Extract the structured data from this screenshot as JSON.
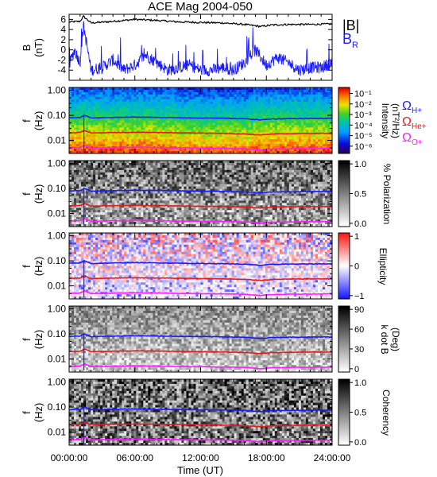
{
  "figure": {
    "title": "ACE Mag 2004-050",
    "xlabel": "Time (UT)",
    "xticks": [
      "00:00:00",
      "06:00:00",
      "12:00:00",
      "18:00:00",
      "24:00:00"
    ]
  },
  "colors": {
    "b_magnitude": "#000000",
    "b_r": "#1a1aff",
    "omega_h": "#1a1aff",
    "omega_he": "#e61a1a",
    "omega_o": "#ff1aff"
  },
  "chart_data": [
    {
      "type": "line",
      "panel": "magnetic-field",
      "ylabel": "B",
      "yunit": "(nT)",
      "ylim": [
        -6,
        7
      ],
      "yticks": [
        "6",
        "4",
        "2",
        "0",
        "-2",
        "-4"
      ],
      "xlim": [
        0,
        24
      ],
      "series": [
        {
          "name": "|B|",
          "x": [
            0,
            1,
            1.3,
            2,
            4,
            6,
            8,
            10,
            12,
            14,
            16,
            17.5,
            18.5,
            20,
            22,
            24
          ],
          "values": [
            5.5,
            5.6,
            6.6,
            5.3,
            5.6,
            6.0,
            5.8,
            5.5,
            5.4,
            5.3,
            5.0,
            4.6,
            4.9,
            5.0,
            5.0,
            5.1
          ]
        },
        {
          "name": "B",
          "subscript": "R",
          "x": [
            0,
            0.5,
            1,
            1.3,
            2,
            3,
            4,
            5,
            6,
            7,
            8,
            9,
            10,
            11,
            12,
            13,
            14,
            15,
            16,
            17,
            18,
            19,
            20,
            21,
            22,
            23,
            24
          ],
          "values": [
            -3.0,
            0.0,
            -2.5,
            5.0,
            -4.0,
            -3.5,
            -2.0,
            -4.0,
            -3.0,
            -1.0,
            -2.5,
            -4.0,
            -3.5,
            -3.0,
            -4.0,
            -4.0,
            -3.5,
            -4.0,
            -2.5,
            0.0,
            -3.0,
            -1.5,
            -2.5,
            -4.0,
            -3.5,
            -3.5,
            -2.5
          ]
        }
      ]
    },
    {
      "type": "heatmap",
      "panel": "intensity",
      "ylabel": "f",
      "yunit": "(Hz)",
      "ylim": [
        0.003,
        1.3
      ],
      "yticks": [
        "1.00",
        "0.10",
        "0.01"
      ],
      "colorbar_label": "Intensity",
      "colorbar_unit": "(nT²/Hz)",
      "colorbar_ticks": [
        "10⁻¹",
        "10⁻²",
        "10⁻³",
        "10⁻⁴",
        "10⁻⁵",
        "10⁻⁶"
      ],
      "colorbar_scale": "log",
      "legend": [
        "ΩH+",
        "ΩHe+",
        "ΩO+"
      ]
    },
    {
      "type": "heatmap",
      "panel": "polarization",
      "ylabel": "f",
      "yunit": "(Hz)",
      "ylim": [
        0.003,
        1.3
      ],
      "yticks": [
        "1.00",
        "0.10",
        "0.01"
      ],
      "colorbar_label": "% Polarization",
      "colorbar_ticks": [
        "1.0",
        "0.5",
        "0.0"
      ]
    },
    {
      "type": "heatmap",
      "panel": "ellipticity",
      "ylabel": "f",
      "yunit": "(Hz)",
      "ylim": [
        0.003,
        1.3
      ],
      "yticks": [
        "1.00",
        "0.10",
        "0.01"
      ],
      "colorbar_label": "Ellipticity",
      "colorbar_ticks": [
        "1",
        "0",
        "−1"
      ]
    },
    {
      "type": "heatmap",
      "panel": "k-dot-b",
      "ylabel": "f",
      "yunit": "(Hz)",
      "ylim": [
        0.003,
        1.3
      ],
      "yticks": [
        "1.00",
        "0.10",
        "0.01"
      ],
      "colorbar_label": "k dot B",
      "colorbar_unit": "(Deg)",
      "colorbar_ticks": [
        "90",
        "60",
        "30",
        "0"
      ]
    },
    {
      "type": "heatmap",
      "panel": "coherency",
      "ylabel": "f",
      "yunit": "(Hz)",
      "ylim": [
        0.003,
        1.3
      ],
      "yticks": [
        "1.00",
        "0.10",
        "0.01"
      ],
      "colorbar_label": "Coherency",
      "colorbar_ticks": [
        "1.0",
        "0.5",
        "0.0"
      ]
    },
    {
      "type": "line",
      "panel": "gyrofrequency-overlays",
      "x": [
        0,
        1,
        1.4,
        2,
        4,
        6,
        8,
        10,
        12,
        14,
        16,
        17.5,
        18.5,
        20,
        22,
        24
      ],
      "series": [
        {
          "name": "ΩH+",
          "values": [
            0.08,
            0.082,
            0.1,
            0.078,
            0.082,
            0.085,
            0.083,
            0.08,
            0.078,
            0.077,
            0.073,
            0.066,
            0.072,
            0.074,
            0.075,
            0.076
          ]
        },
        {
          "name": "ΩHe+",
          "values": [
            0.02,
            0.0205,
            0.025,
            0.0195,
            0.0205,
            0.021,
            0.0207,
            0.02,
            0.0195,
            0.019,
            0.018,
            0.0165,
            0.018,
            0.0185,
            0.019,
            0.019
          ]
        },
        {
          "name": "ΩO+",
          "values": [
            0.005,
            0.0051,
            0.0063,
            0.0049,
            0.0051,
            0.0053,
            0.0052,
            0.005,
            0.0049,
            0.0048,
            0.0046,
            0.0041,
            0.0045,
            0.0046,
            0.0047,
            0.0048
          ]
        }
      ]
    }
  ]
}
